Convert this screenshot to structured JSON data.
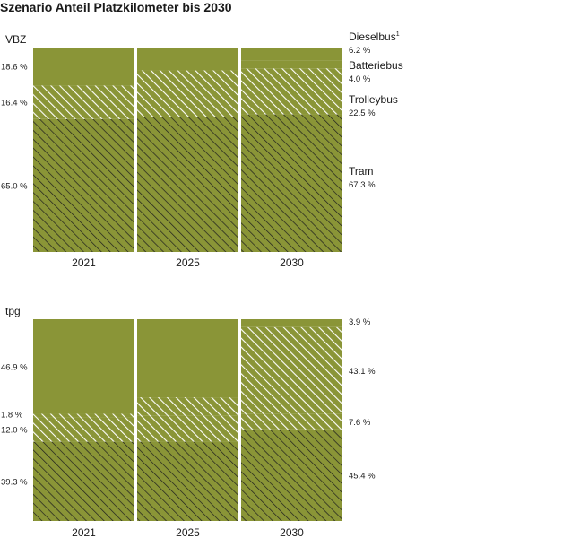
{
  "title": "Szenario Anteil Platzkilometer bis 2030",
  "colors": {
    "bar": "#8a9537",
    "hatch_dark": "#1e1e1e",
    "hatch_light": "#ffffff"
  },
  "chart_data": [
    {
      "type": "bar",
      "stacked": true,
      "label": "VBZ",
      "categories": [
        "2021",
        "2025",
        "2030"
      ],
      "ylim": [
        0,
        100
      ],
      "segment_order_bottom_to_top": [
        "Tram",
        "Trolleybus",
        "Batteriebus",
        "Dieselbus"
      ],
      "series": [
        {
          "name": "Tram",
          "pattern": "dark-hatch",
          "values": [
            65.0,
            65.8,
            67.3
          ]
        },
        {
          "name": "Trolleybus",
          "pattern": "light-hatch",
          "values": [
            16.4,
            23.0,
            22.5
          ]
        },
        {
          "name": "Batteriebus",
          "pattern": "solid",
          "values": [
            0.0,
            0.0,
            4.0
          ]
        },
        {
          "name": "Dieselbus",
          "pattern": "solid",
          "values": [
            18.6,
            11.2,
            6.2
          ]
        }
      ],
      "left_labels": [
        "18.6 %",
        "16.4 %",
        "65.0 %"
      ],
      "right_labels": [
        {
          "name": "Dieselbus",
          "footnote": "1",
          "value": "6.2 %"
        },
        {
          "name": "Batteriebus",
          "value": "4.0 %"
        },
        {
          "name": "Trolleybus",
          "value": "22.5 %"
        },
        {
          "name": "Tram",
          "value": "67.3 %"
        }
      ]
    },
    {
      "type": "bar",
      "stacked": true,
      "label": "tpg",
      "categories": [
        "2021",
        "2025",
        "2030"
      ],
      "ylim": [
        0,
        100
      ],
      "segment_order_bottom_to_top": [
        "Tram",
        "Trolleybus",
        "Batteriebus",
        "Dieselbus"
      ],
      "series": [
        {
          "name": "Tram",
          "pattern": "dark-hatch",
          "values": [
            39.3,
            39.3,
            45.4
          ]
        },
        {
          "name": "Trolleybus",
          "pattern": "light-hatch",
          "values": [
            12.0,
            13.0,
            7.6
          ]
        },
        {
          "name": "Batteriebus",
          "pattern": "light-hatch",
          "values": [
            1.8,
            9.0,
            43.1
          ]
        },
        {
          "name": "Dieselbus",
          "pattern": "solid",
          "values": [
            46.9,
            38.7,
            3.9
          ]
        }
      ],
      "left_labels": [
        "46.9 %",
        "1.8 %",
        "12.0 %",
        "39.3 %"
      ],
      "right_labels": [
        {
          "value": "3.9 %"
        },
        {
          "value": "43.1 %"
        },
        {
          "value": "7.6 %"
        },
        {
          "value": "45.4 %"
        }
      ]
    }
  ]
}
